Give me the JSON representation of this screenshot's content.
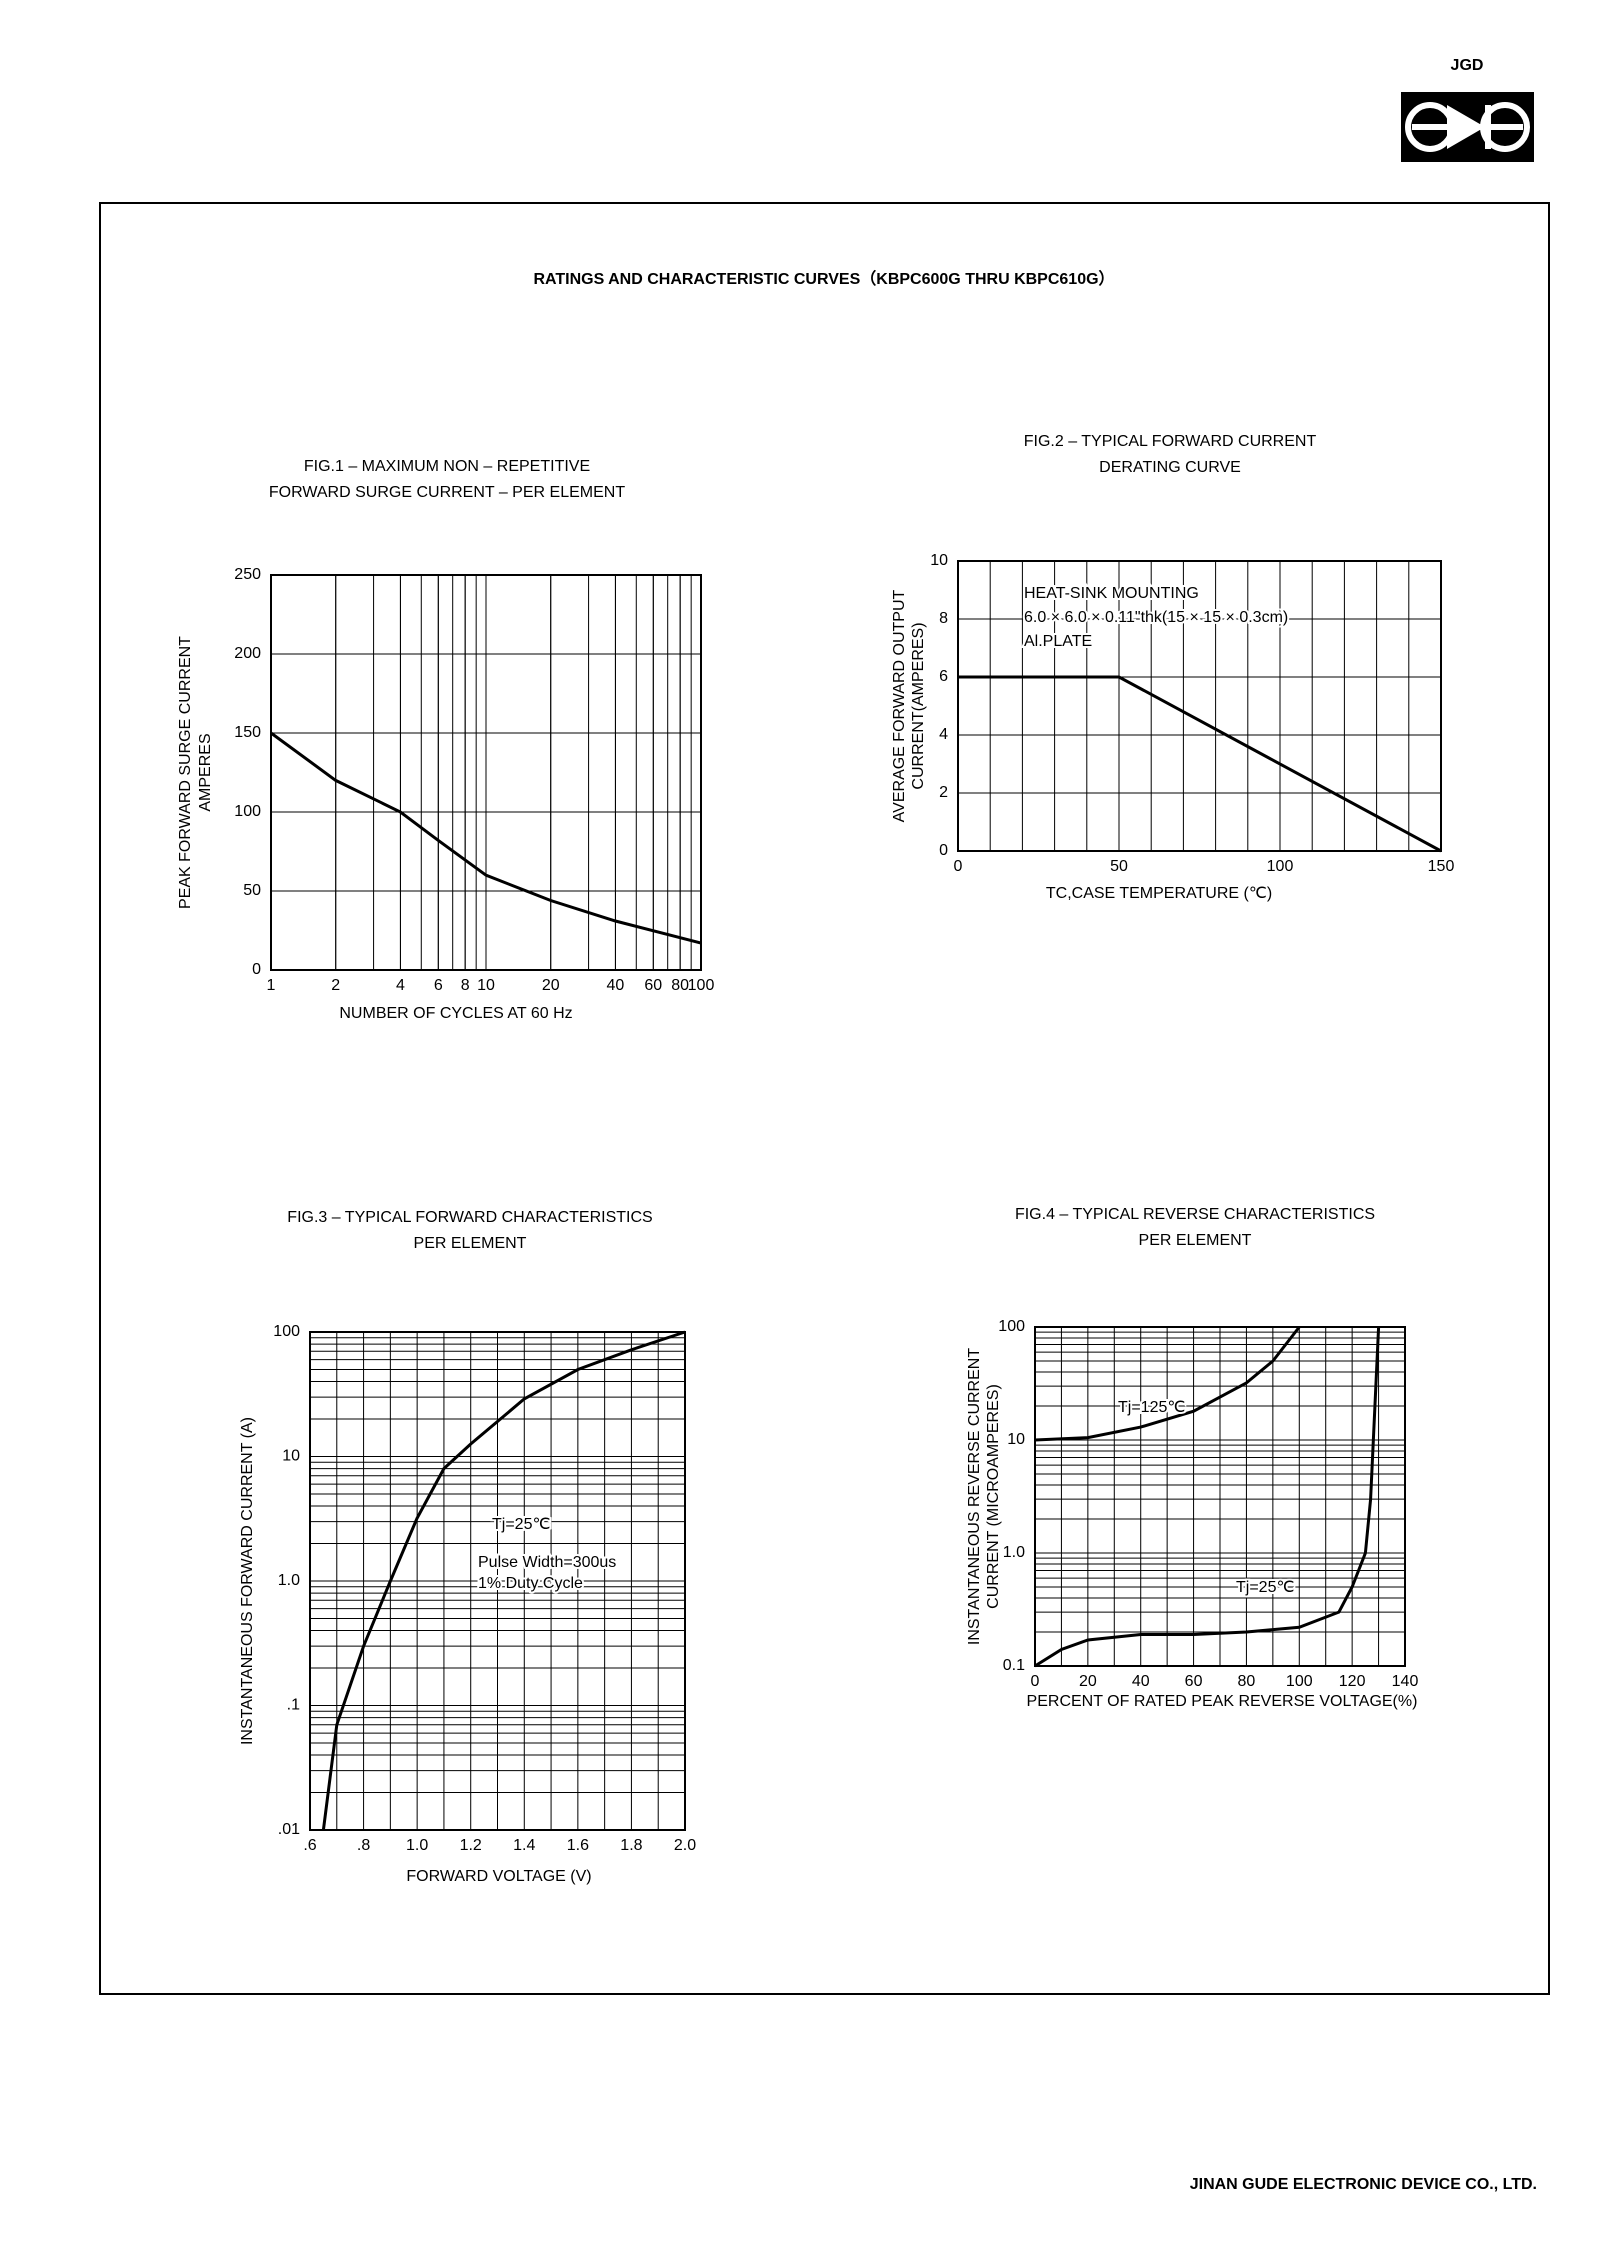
{
  "logo": "JGD",
  "title": "RATINGS AND CHARACTERISTIC CURVES（KBPC600G THRU KBPC610G）",
  "footer": "JINAN GUDE ELECTRONIC DEVICE CO., LTD.",
  "chart_data": [
    {
      "type": "line",
      "title": [
        "FIG.1 – MAXIMUM NON – REPETITIVE",
        "FORWARD SURGE CURRENT – PER ELEMENT"
      ],
      "xlabel": "NUMBER OF CYCLES AT 60 Hz",
      "ylabel": [
        "PEAK FORWARD SURGE CURRENT",
        "AMPERES"
      ],
      "xscale": "log",
      "xlim": [
        1,
        100
      ],
      "xticks": [
        1,
        2,
        4,
        6,
        8,
        10,
        20,
        40,
        60,
        80,
        100
      ],
      "ylim": [
        0,
        250
      ],
      "yticks": [
        0,
        50,
        100,
        150,
        200,
        250
      ],
      "grid": true,
      "series": [
        {
          "color": "#000000",
          "x": [
            1,
            2,
            4,
            6,
            10,
            20,
            40,
            100
          ],
          "values": [
            150,
            120,
            100,
            82,
            60,
            44,
            31,
            17
          ]
        }
      ]
    },
    {
      "type": "line",
      "title": [
        "FIG.2 – TYPICAL FORWARD CURRENT",
        "DERATING CURVE"
      ],
      "xlabel": "TC,CASE   TEMPERATURE (℃)",
      "ylabel": [
        "AVERAGE FORWARD OUTPUT",
        "CURRENT(AMPERES)"
      ],
      "xlim": [
        0,
        150
      ],
      "xticks": [
        0,
        50,
        100,
        150
      ],
      "ylim": [
        0,
        10
      ],
      "yticks": [
        0,
        2,
        4,
        6,
        8,
        10
      ],
      "grid": true,
      "annotations": [
        "HEAT-SINK  MOUNTING",
        "6.0 × 6.0 × 0.11\"thk(15 × 15 × 0.3cm)",
        "Al.PLATE"
      ],
      "series": [
        {
          "color": "#000000",
          "x": [
            0,
            50,
            150
          ],
          "values": [
            6,
            6,
            0
          ]
        }
      ]
    },
    {
      "type": "line",
      "title": [
        "FIG.3 – TYPICAL FORWARD CHARACTERISTICS",
        "PER ELEMENT"
      ],
      "xlabel": "FORWARD VOLTAGE (V)",
      "ylabel": [
        "INSTANTANEOUS FORWARD CURRENT (A)"
      ],
      "xlim": [
        0.6,
        2.0
      ],
      "xticks": [
        {
          "value": 0.6,
          "label": ".6"
        },
        {
          "value": 0.8,
          "label": ".8"
        },
        {
          "value": 1.0,
          "label": "1.0"
        },
        {
          "value": 1.2,
          "label": "1.2"
        },
        1.4,
        1.6,
        1.8,
        {
          "value": 2.0,
          "label": "2.0"
        }
      ],
      "yscale": "log",
      "ylim": [
        0.01,
        100
      ],
      "yticks": [
        {
          "value": 0.01,
          "label": ".01"
        },
        {
          "value": 0.1,
          "label": ".1"
        },
        {
          "value": 1,
          "label": "1.0"
        },
        10,
        100
      ],
      "grid": true,
      "annotations": [
        "Tj=25℃",
        "Pulse Width=300us",
        "1% Duty Cycle"
      ],
      "series": [
        {
          "color": "#000000",
          "x": [
            0.65,
            0.7,
            0.8,
            0.9,
            1.0,
            1.1,
            1.2,
            1.4,
            1.6,
            1.8,
            2.0
          ],
          "values": [
            0.01,
            0.07,
            0.3,
            1.0,
            3.2,
            8,
            12.6,
            29,
            50,
            72,
            100
          ]
        }
      ]
    },
    {
      "type": "line",
      "title": [
        "FIG.4 – TYPICAL REVERSE CHARACTERISTICS",
        "PER ELEMENT"
      ],
      "xlabel": "PERCENT OF RATED PEAK REVERSE VOLTAGE(%)",
      "ylabel": [
        "INSTANTANEOUS REVERSE CURRENT",
        "CURRENT (MICROAMPERES)"
      ],
      "xlim": [
        0,
        140
      ],
      "xticks": [
        0,
        20,
        40,
        60,
        80,
        100,
        120,
        140
      ],
      "yscale": "log",
      "ylim": [
        0.1,
        100
      ],
      "yticks": [
        0.1,
        {
          "value": 1,
          "label": "1.0"
        },
        10,
        100
      ],
      "grid": true,
      "series": [
        {
          "name": "Tj=125℃",
          "color": "#000000",
          "x": [
            0,
            20,
            40,
            60,
            80,
            90,
            100
          ],
          "values": [
            10,
            10.5,
            13,
            18,
            32,
            50,
            100
          ]
        },
        {
          "name": "Tj=25℃",
          "color": "#000000",
          "x": [
            0,
            10,
            20,
            40,
            60,
            80,
            100,
            115,
            120,
            125,
            127,
            130
          ],
          "values": [
            0.1,
            0.14,
            0.17,
            0.19,
            0.19,
            0.2,
            0.22,
            0.3,
            0.5,
            1,
            3,
            100
          ]
        }
      ]
    }
  ]
}
